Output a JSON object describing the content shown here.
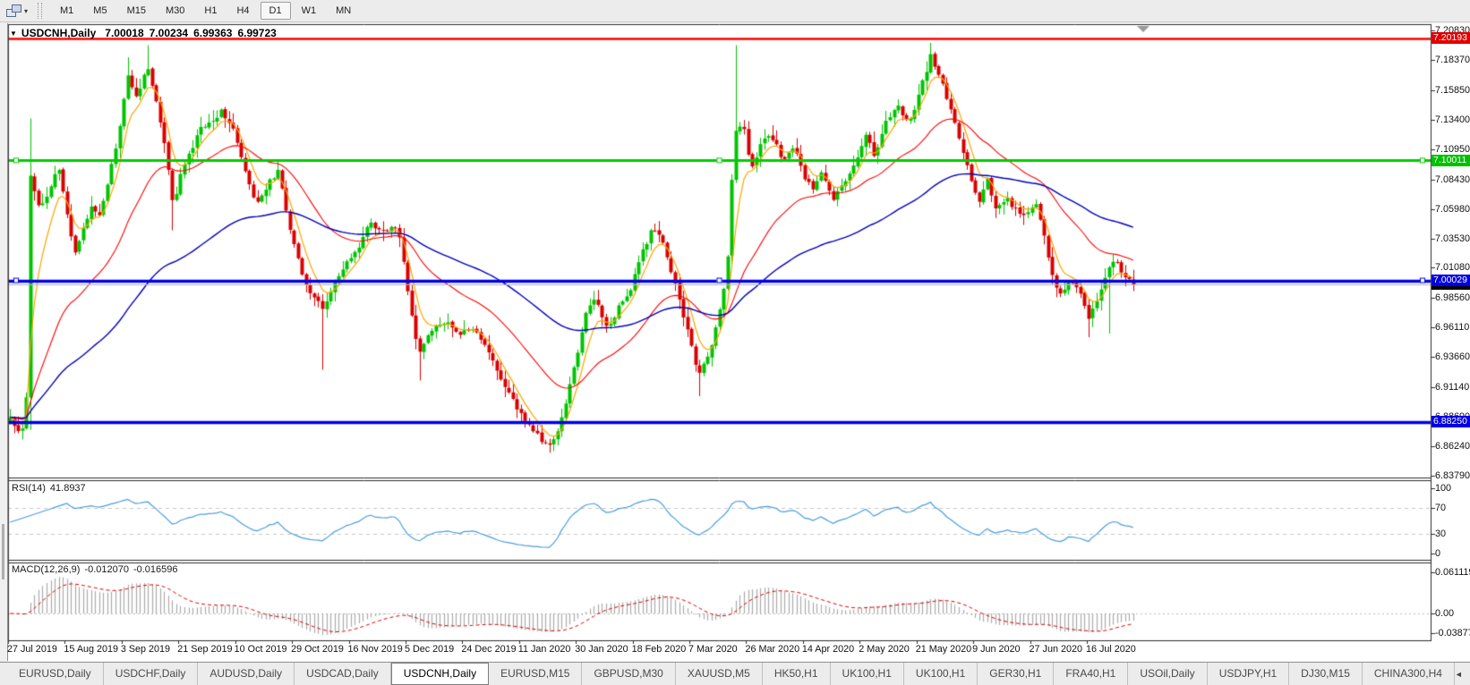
{
  "toolbar": {
    "timeframes": [
      "M1",
      "M5",
      "M15",
      "M30",
      "H1",
      "H4",
      "D1",
      "W1",
      "MN"
    ],
    "active_timeframe": "D1"
  },
  "icons": {
    "caret": "▾",
    "title_marker": "▼",
    "tab_prev": "◄",
    "tab_next": "►"
  },
  "colors": {
    "bullish": "#00C400",
    "bearish": "#DB0000",
    "ma_fast": "#FFA500",
    "ma_medium": "#FF0000",
    "ma_slow": "#0000BB",
    "rsi_line": "#4A9EE0",
    "rsi_levels": "#C8C8C8",
    "macd_histogram": "#ABABAB",
    "macd_signal": "#E00000",
    "resistance_line": "#FF0000",
    "support_line_green": "#00CC00",
    "support_line_blue": "#0000E6",
    "current_price_line": "#B4B4B4"
  },
  "chart": {
    "title": {
      "symbol": "USDCNH,Daily",
      "open": "7.00018",
      "high": "7.00234",
      "low": "6.99363",
      "close": "6.99723"
    },
    "indicators": {
      "rsi": {
        "label": "RSI(14)",
        "value": "41.8937",
        "levels_axis": [
          "100",
          "70",
          "30",
          "0"
        ],
        "levels_dashed": [
          70,
          30
        ]
      },
      "macd": {
        "label": "MACD(12,26,9)",
        "value": "-0.012070",
        "signal_value": "-0.016596",
        "axis": [
          "0.061119",
          "0.00",
          "-0.038777"
        ]
      }
    },
    "price_axis_ticks": [
      "7.20830",
      "7.18370",
      "7.15850",
      "7.13400",
      "7.10950",
      "7.08430",
      "7.05980",
      "7.03530",
      "7.01080",
      "6.98560",
      "6.96110",
      "6.93660",
      "6.91140",
      "6.88690",
      "6.86240",
      "6.83790"
    ],
    "price_labels": [
      {
        "value": "7.20193",
        "type": "resistance-line",
        "color": "#E00000"
      },
      {
        "value": "7.10011",
        "type": "horizontal-line-green",
        "color": "#00C000"
      },
      {
        "value": "7.00029",
        "type": "horizontal-line-blue",
        "color": "#0000E0"
      },
      {
        "value": "6.99723",
        "type": "current-price",
        "color": "#000000"
      },
      {
        "value": "6.88250",
        "type": "horizontal-line-blue-lower",
        "color": "#0000E0"
      }
    ],
    "date_axis_ticks": [
      "27 Jul 2019",
      "15 Aug 2019",
      "3 Sep 2019",
      "21 Sep 2019",
      "10 Oct 2019",
      "29 Oct 2019",
      "16 Nov 2019",
      "5 Dec 2019",
      "24 Dec 2019",
      "11 Jan 2020",
      "30 Jan 2020",
      "18 Feb 2020",
      "7 Mar 2020",
      "26 Mar 2020",
      "14 Apr 2020",
      "2 May 2020",
      "21 May 2020",
      "9 Jun 2020",
      "27 Jun 2020",
      "16 Jul 2020"
    ]
  },
  "chart_data": {
    "type": "candlestick",
    "symbol": "USDCNH",
    "timeframe": "Daily",
    "bar_count": 278,
    "y_axis": {
      "min": 6.8379,
      "max": 7.2083
    },
    "ohlc_current": {
      "open": 7.00018,
      "high": 7.00234,
      "low": 6.99363,
      "close": 6.99723
    },
    "horizontal_lines": [
      {
        "price": 7.20193,
        "color": "#FF0000",
        "style": "solid"
      },
      {
        "price": 7.10011,
        "color": "#00CC00",
        "style": "solid",
        "selected": true
      },
      {
        "price": 7.00029,
        "color": "#0000E6",
        "style": "solid",
        "selected": true
      },
      {
        "price": 6.8825,
        "color": "#0000E6",
        "style": "solid"
      }
    ],
    "current_price": 6.99723,
    "moving_averages": [
      {
        "name": "fast",
        "color": "#FFA500",
        "period": 6
      },
      {
        "name": "medium",
        "color": "#FF0000",
        "period": 30
      },
      {
        "name": "slow",
        "color": "#0000BB",
        "period": 80
      }
    ],
    "indicators": {
      "rsi": {
        "period": 14,
        "current": 41.8937,
        "levels": [
          70,
          30
        ],
        "range": [
          0,
          100
        ]
      },
      "macd": {
        "fast": 12,
        "slow": 26,
        "signal": 9,
        "current_main": -0.01207,
        "current_signal": -0.016596,
        "axis_range": [
          -0.038777,
          0.061119
        ]
      }
    },
    "close_path_anchors": [
      [
        0.0,
        6.886
      ],
      [
        0.008,
        6.874
      ],
      [
        0.014,
        6.882
      ],
      [
        0.018,
        7.088
      ],
      [
        0.026,
        7.062
      ],
      [
        0.034,
        7.072
      ],
      [
        0.042,
        7.096
      ],
      [
        0.05,
        7.06
      ],
      [
        0.057,
        7.022
      ],
      [
        0.065,
        7.042
      ],
      [
        0.072,
        7.062
      ],
      [
        0.08,
        7.056
      ],
      [
        0.088,
        7.086
      ],
      [
        0.096,
        7.12
      ],
      [
        0.105,
        7.172
      ],
      [
        0.112,
        7.152
      ],
      [
        0.122,
        7.178
      ],
      [
        0.13,
        7.15
      ],
      [
        0.138,
        7.11
      ],
      [
        0.145,
        7.062
      ],
      [
        0.152,
        7.09
      ],
      [
        0.16,
        7.106
      ],
      [
        0.17,
        7.128
      ],
      [
        0.18,
        7.132
      ],
      [
        0.188,
        7.142
      ],
      [
        0.198,
        7.128
      ],
      [
        0.208,
        7.094
      ],
      [
        0.218,
        7.064
      ],
      [
        0.228,
        7.078
      ],
      [
        0.238,
        7.092
      ],
      [
        0.248,
        7.048
      ],
      [
        0.258,
        7.012
      ],
      [
        0.268,
        6.988
      ],
      [
        0.278,
        6.978
      ],
      [
        0.288,
        6.996
      ],
      [
        0.298,
        7.012
      ],
      [
        0.31,
        7.028
      ],
      [
        0.32,
        7.048
      ],
      [
        0.332,
        7.04
      ],
      [
        0.345,
        7.046
      ],
      [
        0.356,
        6.978
      ],
      [
        0.364,
        6.938
      ],
      [
        0.374,
        6.958
      ],
      [
        0.386,
        6.966
      ],
      [
        0.4,
        6.956
      ],
      [
        0.412,
        6.96
      ],
      [
        0.425,
        6.942
      ],
      [
        0.438,
        6.916
      ],
      [
        0.45,
        6.896
      ],
      [
        0.462,
        6.88
      ],
      [
        0.472,
        6.868
      ],
      [
        0.48,
        6.862
      ],
      [
        0.488,
        6.876
      ],
      [
        0.497,
        6.908
      ],
      [
        0.505,
        6.94
      ],
      [
        0.514,
        6.978
      ],
      [
        0.522,
        6.986
      ],
      [
        0.532,
        6.958
      ],
      [
        0.542,
        6.98
      ],
      [
        0.552,
        6.992
      ],
      [
        0.562,
        7.022
      ],
      [
        0.572,
        7.044
      ],
      [
        0.582,
        7.03
      ],
      [
        0.592,
        6.996
      ],
      [
        0.602,
        6.962
      ],
      [
        0.612,
        6.922
      ],
      [
        0.622,
        6.938
      ],
      [
        0.63,
        6.968
      ],
      [
        0.638,
        7.006
      ],
      [
        0.645,
        7.122
      ],
      [
        0.652,
        7.132
      ],
      [
        0.66,
        7.092
      ],
      [
        0.668,
        7.114
      ],
      [
        0.678,
        7.12
      ],
      [
        0.688,
        7.1
      ],
      [
        0.698,
        7.112
      ],
      [
        0.706,
        7.088
      ],
      [
        0.714,
        7.076
      ],
      [
        0.722,
        7.092
      ],
      [
        0.732,
        7.066
      ],
      [
        0.742,
        7.082
      ],
      [
        0.752,
        7.096
      ],
      [
        0.762,
        7.124
      ],
      [
        0.77,
        7.102
      ],
      [
        0.78,
        7.134
      ],
      [
        0.79,
        7.146
      ],
      [
        0.8,
        7.13
      ],
      [
        0.81,
        7.158
      ],
      [
        0.82,
        7.188
      ],
      [
        0.828,
        7.168
      ],
      [
        0.838,
        7.142
      ],
      [
        0.846,
        7.116
      ],
      [
        0.854,
        7.088
      ],
      [
        0.862,
        7.066
      ],
      [
        0.87,
        7.084
      ],
      [
        0.878,
        7.056
      ],
      [
        0.886,
        7.07
      ],
      [
        0.894,
        7.06
      ],
      [
        0.903,
        7.052
      ],
      [
        0.912,
        7.066
      ],
      [
        0.92,
        7.04
      ],
      [
        0.928,
        7.002
      ],
      [
        0.936,
        6.986
      ],
      [
        0.944,
        7.002
      ],
      [
        0.953,
        6.99
      ],
      [
        0.96,
        6.968
      ],
      [
        0.968,
        6.986
      ],
      [
        0.976,
        7.008
      ],
      [
        0.984,
        7.018
      ],
      [
        0.992,
        7.004
      ],
      [
        1.0,
        6.997
      ]
    ],
    "wick_extremes": [
      {
        "f": 0.018,
        "high": 7.135,
        "low": 6.876
      },
      {
        "f": 0.105,
        "high": 7.186
      },
      {
        "f": 0.122,
        "high": 7.196
      },
      {
        "f": 0.145,
        "low": 7.042
      },
      {
        "f": 0.278,
        "low": 6.926
      },
      {
        "f": 0.364,
        "low": 6.917
      },
      {
        "f": 0.48,
        "low": 6.857
      },
      {
        "f": 0.612,
        "low": 6.904
      },
      {
        "f": 0.645,
        "high": 7.196
      },
      {
        "f": 0.82,
        "high": 7.198
      },
      {
        "f": 0.96,
        "low": 6.953
      },
      {
        "f": 0.978,
        "low": 6.956
      }
    ]
  },
  "tabs": {
    "items": [
      {
        "label": "EURUSD,Daily",
        "active": false
      },
      {
        "label": "USDCHF,Daily",
        "active": false
      },
      {
        "label": "AUDUSD,Daily",
        "active": false
      },
      {
        "label": "USDCAD,Daily",
        "active": false
      },
      {
        "label": "USDCNH,Daily",
        "active": true
      },
      {
        "label": "EURUSD,M15",
        "active": false
      },
      {
        "label": "GBPUSD,M30",
        "active": false
      },
      {
        "label": "XAUUSD,M5",
        "active": false
      },
      {
        "label": "HK50,H1",
        "active": false
      },
      {
        "label": "UK100,H1",
        "active": false
      },
      {
        "label": "UK100,H1",
        "active": false
      },
      {
        "label": "GER30,H1",
        "active": false
      },
      {
        "label": "FRA40,H1",
        "active": false
      },
      {
        "label": "USOil,Daily",
        "active": false
      },
      {
        "label": "USDJPY,H1",
        "active": false
      },
      {
        "label": "DJ30,M15",
        "active": false
      },
      {
        "label": "CHINA300,H4",
        "active": false
      }
    ]
  }
}
